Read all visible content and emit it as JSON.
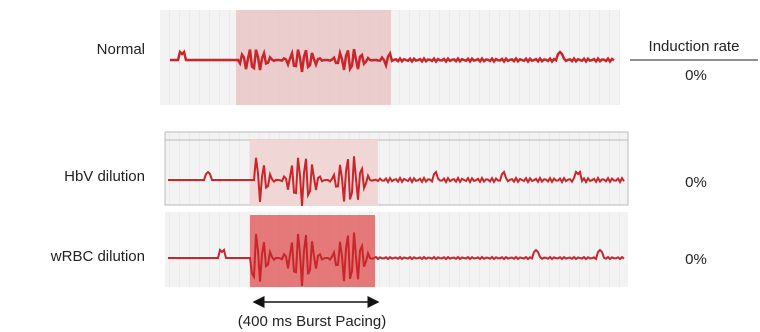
{
  "header": {
    "rate_title": "Induction rate"
  },
  "rows": [
    {
      "label": "Normal",
      "rate": "0%"
    },
    {
      "label": "HbV dilution",
      "rate": "0%"
    },
    {
      "label": "wRBC dilution",
      "rate": "0%"
    }
  ],
  "caption": "(400 ms Burst Pacing)"
}
